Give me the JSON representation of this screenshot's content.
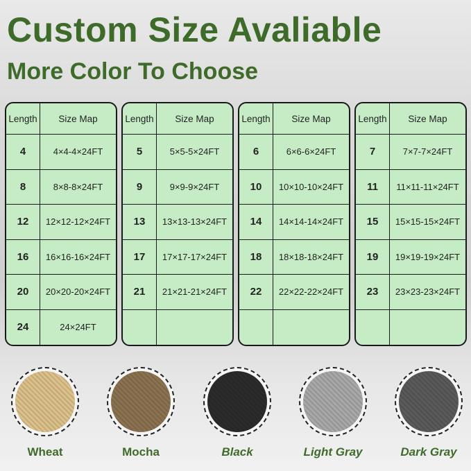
{
  "title": "Custom Size Avaliable",
  "subtitle": "More Color To Choose",
  "headers": {
    "length": "Length",
    "size_map": "Size Map"
  },
  "tables": [
    {
      "rows": [
        {
          "length": "4",
          "size": "4×4-4×24FT"
        },
        {
          "length": "8",
          "size": "8×8-8×24FT"
        },
        {
          "length": "12",
          "size": "12×12-12×24FT"
        },
        {
          "length": "16",
          "size": "16×16-16×24FT"
        },
        {
          "length": "20",
          "size": "20×20-20×24FT"
        },
        {
          "length": "24",
          "size": "24×24FT"
        }
      ]
    },
    {
      "rows": [
        {
          "length": "5",
          "size": "5×5-5×24FT"
        },
        {
          "length": "9",
          "size": "9×9-9×24FT"
        },
        {
          "length": "13",
          "size": "13×13-13×24FT"
        },
        {
          "length": "17",
          "size": "17×17-17×24FT"
        },
        {
          "length": "21",
          "size": "21×21-21×24FT"
        },
        {
          "length": "",
          "size": ""
        }
      ]
    },
    {
      "rows": [
        {
          "length": "6",
          "size": "6×6-6×24FT"
        },
        {
          "length": "10",
          "size": "10×10-10×24FT"
        },
        {
          "length": "14",
          "size": "14×14-14×24FT"
        },
        {
          "length": "18",
          "size": "18×18-18×24FT"
        },
        {
          "length": "22",
          "size": "22×22-22×24FT"
        },
        {
          "length": "",
          "size": ""
        }
      ]
    },
    {
      "rows": [
        {
          "length": "7",
          "size": "7×7-7×24FT"
        },
        {
          "length": "11",
          "size": "11×11-11×24FT"
        },
        {
          "length": "15",
          "size": "15×15-15×24FT"
        },
        {
          "length": "19",
          "size": "19×19-19×24FT"
        },
        {
          "length": "23",
          "size": "23×23-23×24FT"
        },
        {
          "length": "",
          "size": ""
        }
      ]
    }
  ],
  "colors": [
    {
      "name": "Wheat",
      "swatch": "#dcc08a"
    },
    {
      "name": "Mocha",
      "swatch": "#8a7250"
    },
    {
      "name": "Black",
      "swatch": "#2b2b2b"
    },
    {
      "name": "Light Gray",
      "swatch": "#a8a8a8"
    },
    {
      "name": "Dark Gray",
      "swatch": "#5a5a5a"
    }
  ]
}
